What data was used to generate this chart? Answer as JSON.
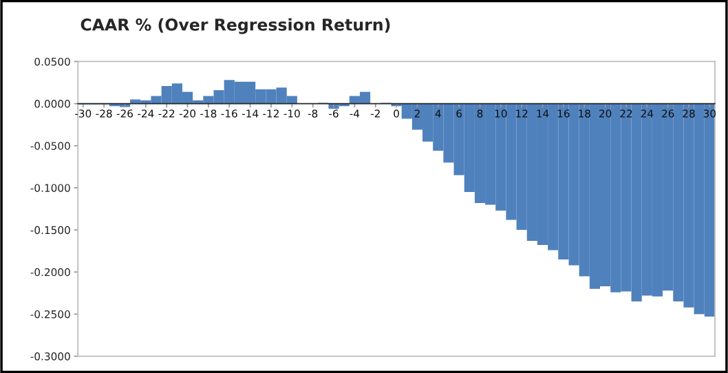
{
  "chart_data": {
    "type": "bar",
    "title": "CAAR % (Over Regression Return)",
    "categories": [
      "-30",
      null,
      "-28",
      null,
      "-26",
      null,
      "-24",
      null,
      "-22",
      null,
      "-20",
      null,
      "-18",
      null,
      "-16",
      null,
      "-14",
      null,
      "-12",
      null,
      "-10",
      null,
      "-8",
      null,
      "-6",
      null,
      "-4",
      null,
      "-2",
      null,
      "0",
      null,
      "2",
      null,
      "4",
      null,
      "6",
      null,
      "8",
      null,
      "10",
      null,
      "12",
      null,
      "14",
      null,
      "16",
      null,
      "18",
      null,
      "20",
      null,
      "22",
      null,
      "24",
      null,
      "26",
      null,
      "28",
      null,
      "30"
    ],
    "values": [
      -0.001,
      -0.001,
      -0.001,
      -0.003,
      -0.004,
      0.005,
      0.004,
      0.009,
      0.021,
      0.024,
      0.014,
      0.004,
      0.009,
      0.016,
      0.028,
      0.026,
      0.026,
      0.017,
      0.017,
      0.019,
      0.009,
      0.0,
      0.0,
      0.001,
      -0.006,
      -0.003,
      0.009,
      0.014,
      0.0,
      0.001,
      -0.003,
      -0.018,
      -0.031,
      -0.045,
      -0.056,
      -0.07,
      -0.085,
      -0.105,
      -0.118,
      -0.12,
      -0.127,
      -0.138,
      -0.15,
      -0.163,
      -0.168,
      -0.174,
      -0.185,
      -0.192,
      -0.205,
      -0.22,
      -0.217,
      -0.224,
      -0.223,
      -0.235,
      -0.228,
      -0.229,
      -0.222,
      -0.235,
      -0.242,
      -0.25,
      -0.253
    ],
    "color": "#4f81bd",
    "ylim": [
      -0.3,
      0.05
    ],
    "yticks": [
      {
        "value": 0.05,
        "label": "0.0500"
      },
      {
        "value": 0.0,
        "label": "0.0000"
      },
      {
        "value": -0.05,
        "label": "-0.0500"
      },
      {
        "value": -0.1,
        "label": "-0.1000"
      },
      {
        "value": -0.15,
        "label": "-0.1500"
      },
      {
        "value": -0.2,
        "label": "-0.2000"
      },
      {
        "value": -0.25,
        "label": "-0.2500"
      },
      {
        "value": -0.3,
        "label": "-0.3000"
      }
    ],
    "grid": false,
    "legend": false
  }
}
